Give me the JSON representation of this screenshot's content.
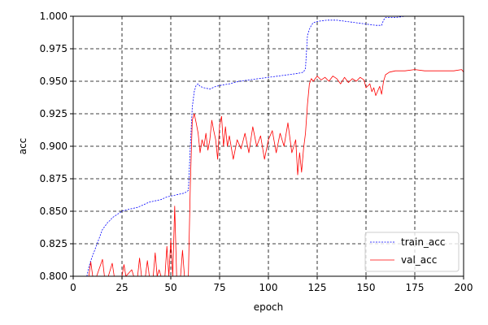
{
  "chart_data": {
    "type": "line",
    "xlabel": "epoch",
    "ylabel": "acc",
    "xlim": [
      0,
      200
    ],
    "ylim": [
      0.8,
      1.0
    ],
    "xticks": [
      0,
      25,
      50,
      75,
      100,
      125,
      150,
      175,
      200
    ],
    "yticks": [
      "0.800",
      "0.825",
      "0.850",
      "0.875",
      "0.900",
      "0.925",
      "0.950",
      "0.975",
      "1.000"
    ],
    "grid": true,
    "legend_loc": "lower-right",
    "series": [
      {
        "name": "train_acc",
        "color": "#0000ff",
        "style": "dashed",
        "points": [
          [
            7,
            0.8
          ],
          [
            8,
            0.807
          ],
          [
            9,
            0.812
          ],
          [
            10,
            0.816
          ],
          [
            11,
            0.82
          ],
          [
            12,
            0.824
          ],
          [
            13,
            0.828
          ],
          [
            14,
            0.832
          ],
          [
            15,
            0.836
          ],
          [
            16,
            0.838
          ],
          [
            17,
            0.84
          ],
          [
            18,
            0.842
          ],
          [
            19,
            0.843
          ],
          [
            20,
            0.845
          ],
          [
            21,
            0.846
          ],
          [
            22,
            0.847
          ],
          [
            23,
            0.848
          ],
          [
            24,
            0.849
          ],
          [
            25,
            0.85
          ],
          [
            27,
            0.851
          ],
          [
            30,
            0.852
          ],
          [
            33,
            0.853
          ],
          [
            36,
            0.855
          ],
          [
            39,
            0.857
          ],
          [
            42,
            0.858
          ],
          [
            45,
            0.859
          ],
          [
            48,
            0.861
          ],
          [
            51,
            0.862
          ],
          [
            54,
            0.863
          ],
          [
            57,
            0.864
          ],
          [
            59,
            0.866
          ],
          [
            60,
            0.9
          ],
          [
            61,
            0.93
          ],
          [
            62,
            0.942
          ],
          [
            63,
            0.947
          ],
          [
            64,
            0.948
          ],
          [
            65,
            0.946
          ],
          [
            67,
            0.945
          ],
          [
            70,
            0.944
          ],
          [
            73,
            0.946
          ],
          [
            76,
            0.947
          ],
          [
            80,
            0.948
          ],
          [
            85,
            0.95
          ],
          [
            90,
            0.951
          ],
          [
            95,
            0.952
          ],
          [
            100,
            0.953
          ],
          [
            105,
            0.954
          ],
          [
            110,
            0.955
          ],
          [
            115,
            0.956
          ],
          [
            118,
            0.957
          ],
          [
            119,
            0.96
          ],
          [
            120,
            0.985
          ],
          [
            121,
            0.99
          ],
          [
            122,
            0.993
          ],
          [
            123,
            0.995
          ],
          [
            125,
            0.996
          ],
          [
            130,
            0.997
          ],
          [
            135,
            0.997
          ],
          [
            140,
            0.996
          ],
          [
            145,
            0.995
          ],
          [
            150,
            0.994
          ],
          [
            155,
            0.993
          ],
          [
            158,
            0.993
          ],
          [
            159,
            0.997
          ],
          [
            160,
            0.999
          ],
          [
            165,
            0.999
          ],
          [
            170,
            1.0
          ],
          [
            180,
            1.0
          ],
          [
            190,
            1.0
          ],
          [
            200,
            1.0
          ]
        ]
      },
      {
        "name": "val_acc",
        "color": "#ff0000",
        "style": "solid",
        "points": [
          [
            8,
            0.8
          ],
          [
            9,
            0.811
          ],
          [
            10,
            0.8
          ],
          [
            12,
            0.8
          ],
          [
            15,
            0.813
          ],
          [
            16,
            0.8
          ],
          [
            18,
            0.8
          ],
          [
            20,
            0.81
          ],
          [
            21,
            0.8
          ],
          [
            25,
            0.8
          ],
          [
            26,
            0.809
          ],
          [
            27,
            0.8
          ],
          [
            30,
            0.805
          ],
          [
            31,
            0.8
          ],
          [
            33,
            0.8
          ],
          [
            34,
            0.814
          ],
          [
            35,
            0.8
          ],
          [
            37,
            0.8
          ],
          [
            38,
            0.812
          ],
          [
            39,
            0.8
          ],
          [
            41,
            0.8
          ],
          [
            42,
            0.818
          ],
          [
            43,
            0.8
          ],
          [
            44,
            0.805
          ],
          [
            45,
            0.8
          ],
          [
            47,
            0.8
          ],
          [
            48,
            0.823
          ],
          [
            49,
            0.8
          ],
          [
            50,
            0.828
          ],
          [
            51,
            0.8
          ],
          [
            52,
            0.854
          ],
          [
            53,
            0.8
          ],
          [
            55,
            0.8
          ],
          [
            56,
            0.82
          ],
          [
            57,
            0.8
          ],
          [
            58,
            0.8
          ],
          [
            59,
            0.8
          ],
          [
            60,
            0.87
          ],
          [
            61,
            0.92
          ],
          [
            62,
            0.925
          ],
          [
            63,
            0.918
          ],
          [
            64,
            0.91
          ],
          [
            65,
            0.895
          ],
          [
            66,
            0.905
          ],
          [
            67,
            0.9
          ],
          [
            68,
            0.91
          ],
          [
            69,
            0.897
          ],
          [
            70,
            0.905
          ],
          [
            71,
            0.92
          ],
          [
            72,
            0.912
          ],
          [
            73,
            0.905
          ],
          [
            74,
            0.89
          ],
          [
            75,
            0.916
          ],
          [
            76,
            0.923
          ],
          [
            77,
            0.9
          ],
          [
            78,
            0.915
          ],
          [
            79,
            0.9
          ],
          [
            80,
            0.908
          ],
          [
            82,
            0.89
          ],
          [
            84,
            0.905
          ],
          [
            86,
            0.898
          ],
          [
            88,
            0.91
          ],
          [
            90,
            0.895
          ],
          [
            92,
            0.915
          ],
          [
            94,
            0.9
          ],
          [
            96,
            0.908
          ],
          [
            98,
            0.89
          ],
          [
            100,
            0.905
          ],
          [
            102,
            0.912
          ],
          [
            104,
            0.895
          ],
          [
            106,
            0.91
          ],
          [
            108,
            0.9
          ],
          [
            110,
            0.918
          ],
          [
            112,
            0.895
          ],
          [
            114,
            0.905
          ],
          [
            115,
            0.878
          ],
          [
            116,
            0.895
          ],
          [
            117,
            0.88
          ],
          [
            118,
            0.898
          ],
          [
            119,
            0.91
          ],
          [
            120,
            0.932
          ],
          [
            121,
            0.948
          ],
          [
            122,
            0.952
          ],
          [
            123,
            0.95
          ],
          [
            125,
            0.954
          ],
          [
            127,
            0.951
          ],
          [
            129,
            0.953
          ],
          [
            131,
            0.95
          ],
          [
            133,
            0.954
          ],
          [
            135,
            0.952
          ],
          [
            137,
            0.948
          ],
          [
            139,
            0.953
          ],
          [
            141,
            0.949
          ],
          [
            143,
            0.952
          ],
          [
            145,
            0.95
          ],
          [
            147,
            0.953
          ],
          [
            149,
            0.951
          ],
          [
            150,
            0.945
          ],
          [
            152,
            0.948
          ],
          [
            153,
            0.942
          ],
          [
            154,
            0.945
          ],
          [
            155,
            0.939
          ],
          [
            157,
            0.946
          ],
          [
            158,
            0.94
          ],
          [
            159,
            0.95
          ],
          [
            160,
            0.955
          ],
          [
            162,
            0.957
          ],
          [
            165,
            0.958
          ],
          [
            170,
            0.958
          ],
          [
            175,
            0.959
          ],
          [
            180,
            0.958
          ],
          [
            185,
            0.958
          ],
          [
            190,
            0.958
          ],
          [
            195,
            0.958
          ],
          [
            199,
            0.959
          ],
          [
            200,
            0.957
          ]
        ]
      }
    ]
  }
}
